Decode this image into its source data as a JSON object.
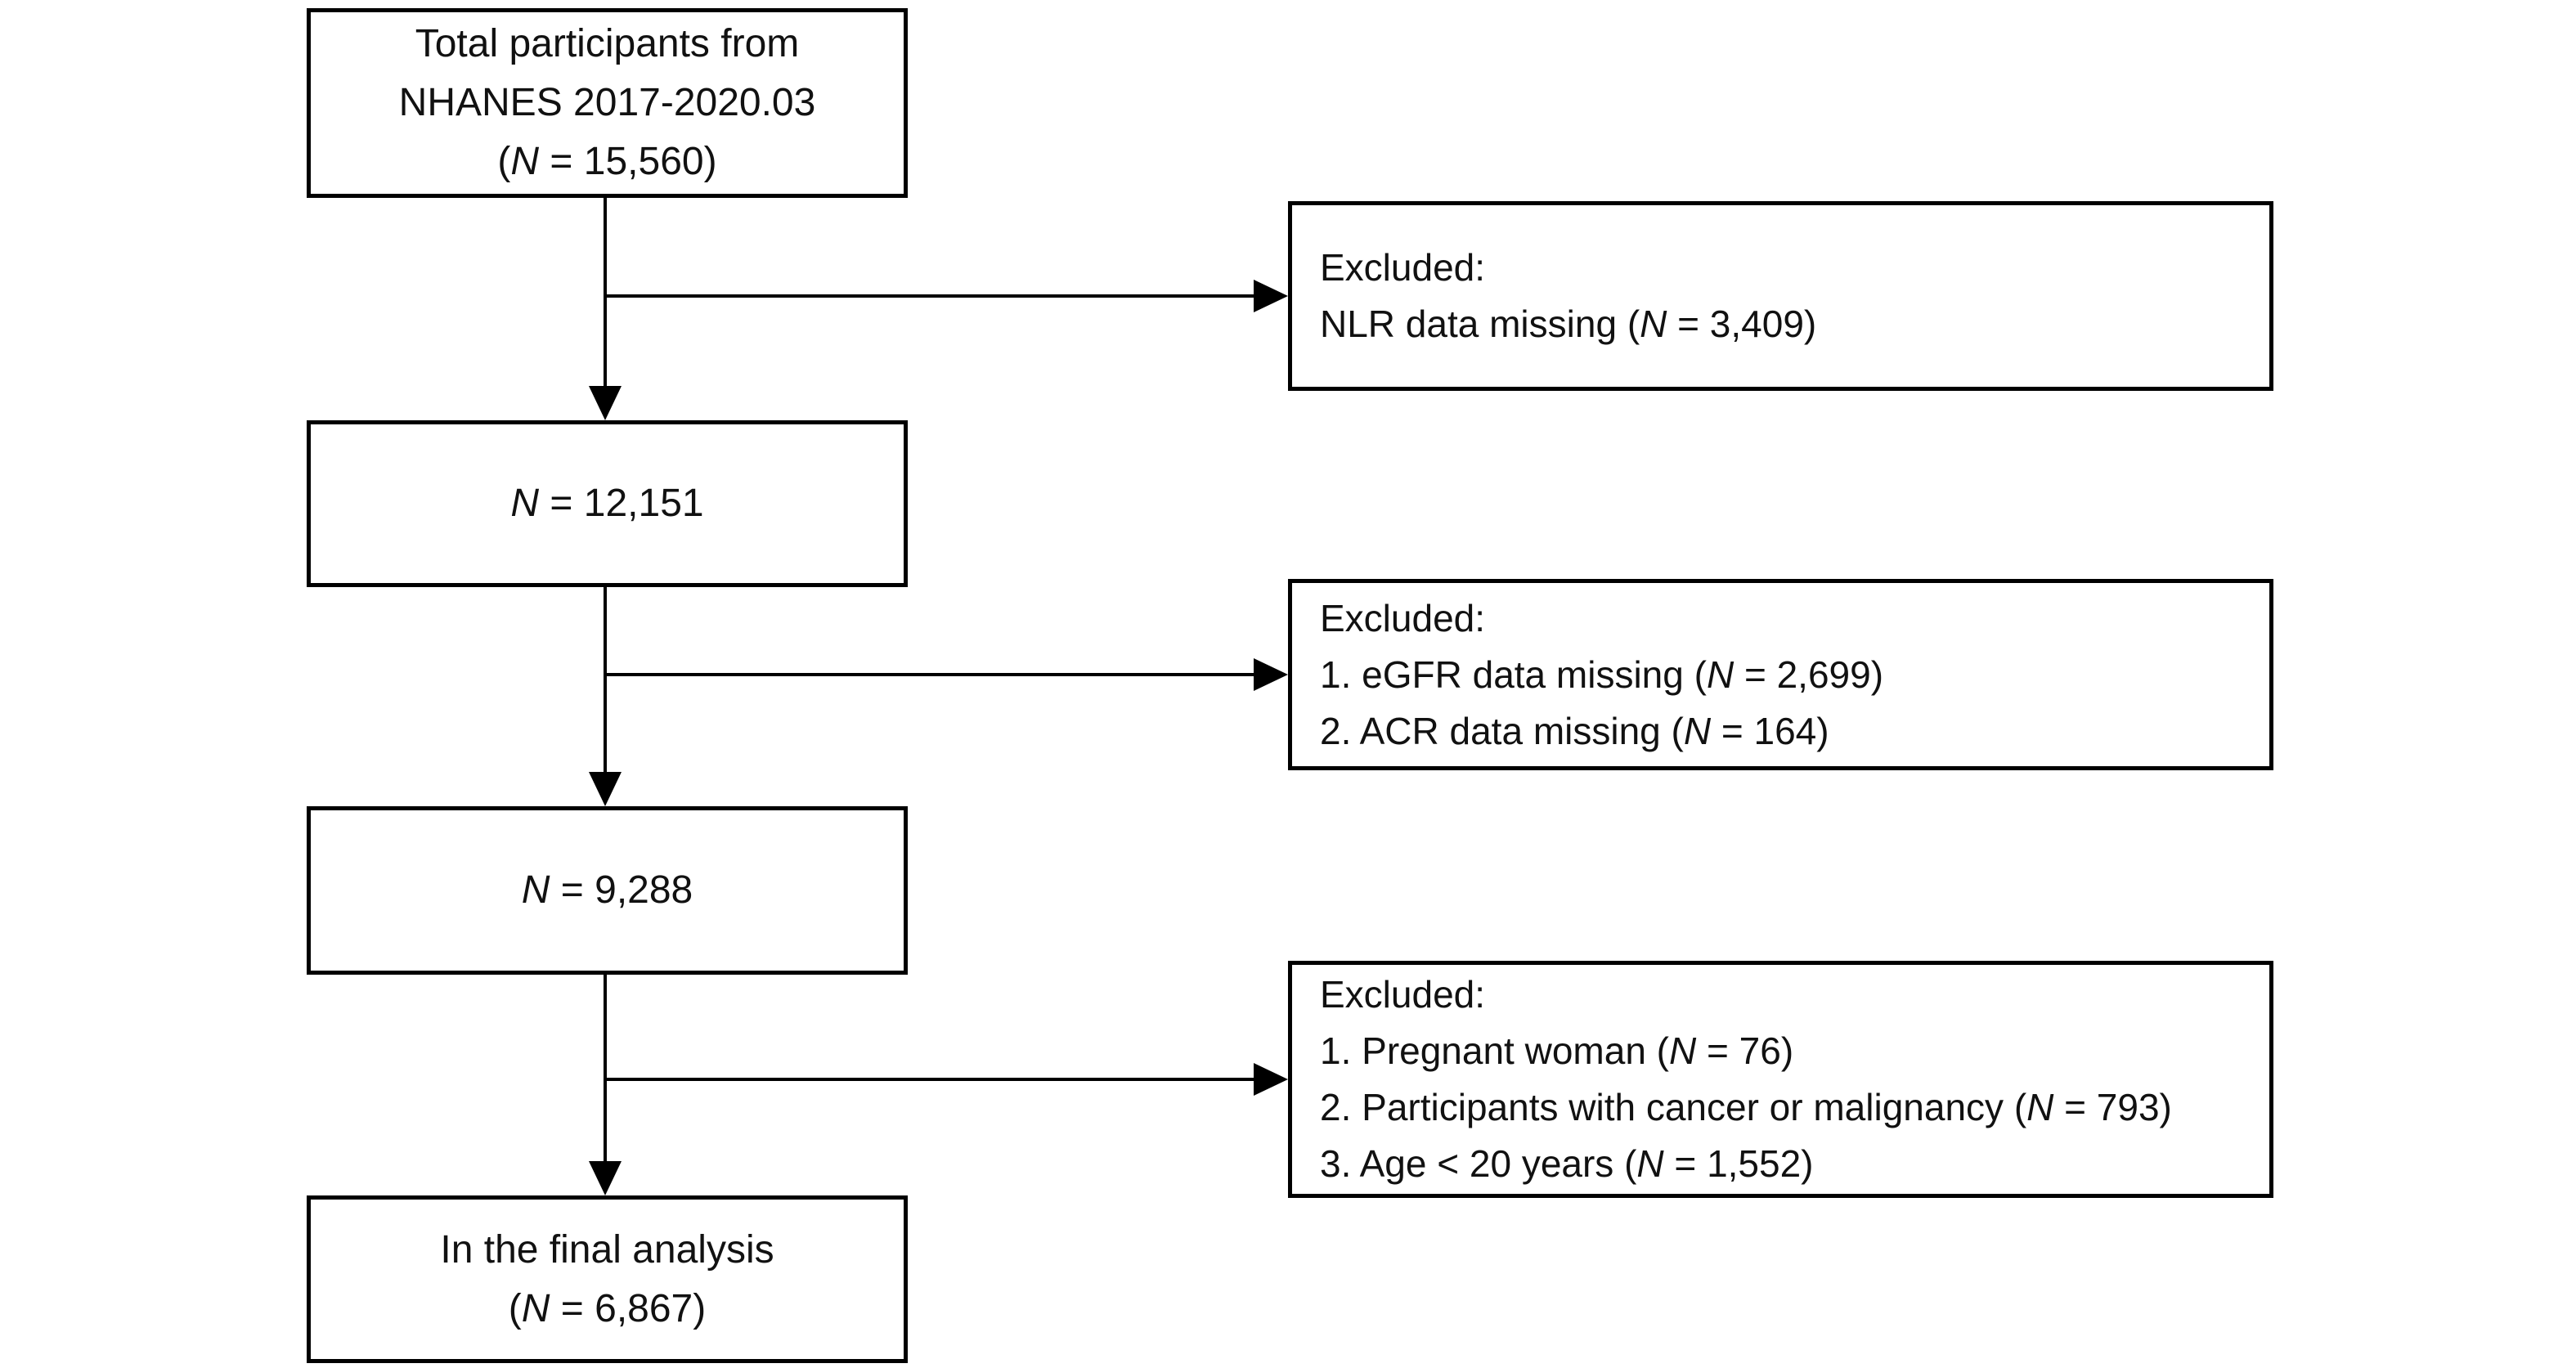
{
  "diagram": {
    "type": "participant-flowchart",
    "colors": {
      "background": "#ffffff",
      "box_fill": "#ffffff",
      "box_border": "#000000",
      "connector": "#000000",
      "text": "#111111"
    },
    "boxes": {
      "total": {
        "lines": [
          [
            {
              "t": "Total participants from"
            }
          ],
          [
            {
              "t": "NHANES 2017-2020.03"
            }
          ],
          [
            {
              "t": "("
            },
            {
              "t": "N",
              "i": true
            },
            {
              "t": " = 15,560)"
            }
          ]
        ]
      },
      "excluded_1": {
        "lines": [
          [
            {
              "t": "Excluded:"
            }
          ],
          [
            {
              "t": "NLR data missing ("
            },
            {
              "t": "N",
              "i": true
            },
            {
              "t": " = 3,409)"
            }
          ]
        ]
      },
      "n_12151": {
        "lines": [
          [
            {
              "t": "N",
              "i": true
            },
            {
              "t": " = 12,151"
            }
          ]
        ]
      },
      "excluded_2": {
        "lines": [
          [
            {
              "t": "Excluded:"
            }
          ],
          [
            {
              "t": "1. eGFR data missing ("
            },
            {
              "t": "N",
              "i": true
            },
            {
              "t": " = 2,699)"
            }
          ],
          [
            {
              "t": "2. ACR data missing ("
            },
            {
              "t": "N",
              "i": true
            },
            {
              "t": " = 164)"
            }
          ]
        ]
      },
      "n_9288": {
        "lines": [
          [
            {
              "t": "N",
              "i": true
            },
            {
              "t": " = 9,288"
            }
          ]
        ]
      },
      "excluded_3": {
        "lines": [
          [
            {
              "t": "Excluded:"
            }
          ],
          [
            {
              "t": "1. Pregnant woman ("
            },
            {
              "t": "N",
              "i": true
            },
            {
              "t": " = 76)"
            }
          ],
          [
            {
              "t": "2. Participants with cancer or malignancy ("
            },
            {
              "t": "N",
              "i": true
            },
            {
              "t": " = 793)"
            }
          ],
          [
            {
              "t": "3. Age < 20 years ("
            },
            {
              "t": "N",
              "i": true
            },
            {
              "t": " = 1,552)"
            }
          ]
        ]
      },
      "final": {
        "lines": [
          [
            {
              "t": "In the final analysis"
            }
          ],
          [
            {
              "t": "("
            },
            {
              "t": "N",
              "i": true
            },
            {
              "t": " = 6,867)"
            }
          ]
        ]
      }
    },
    "edges": [
      {
        "from": "total",
        "to": "n_12151",
        "style": "arrow-down"
      },
      {
        "from": "total",
        "to": "excluded_1",
        "style": "arrow-right"
      },
      {
        "from": "n_12151",
        "to": "n_9288",
        "style": "arrow-down"
      },
      {
        "from": "n_12151",
        "to": "excluded_2",
        "style": "arrow-right"
      },
      {
        "from": "n_9288",
        "to": "final",
        "style": "arrow-down"
      },
      {
        "from": "n_9288",
        "to": "excluded_3",
        "style": "arrow-right"
      }
    ]
  }
}
